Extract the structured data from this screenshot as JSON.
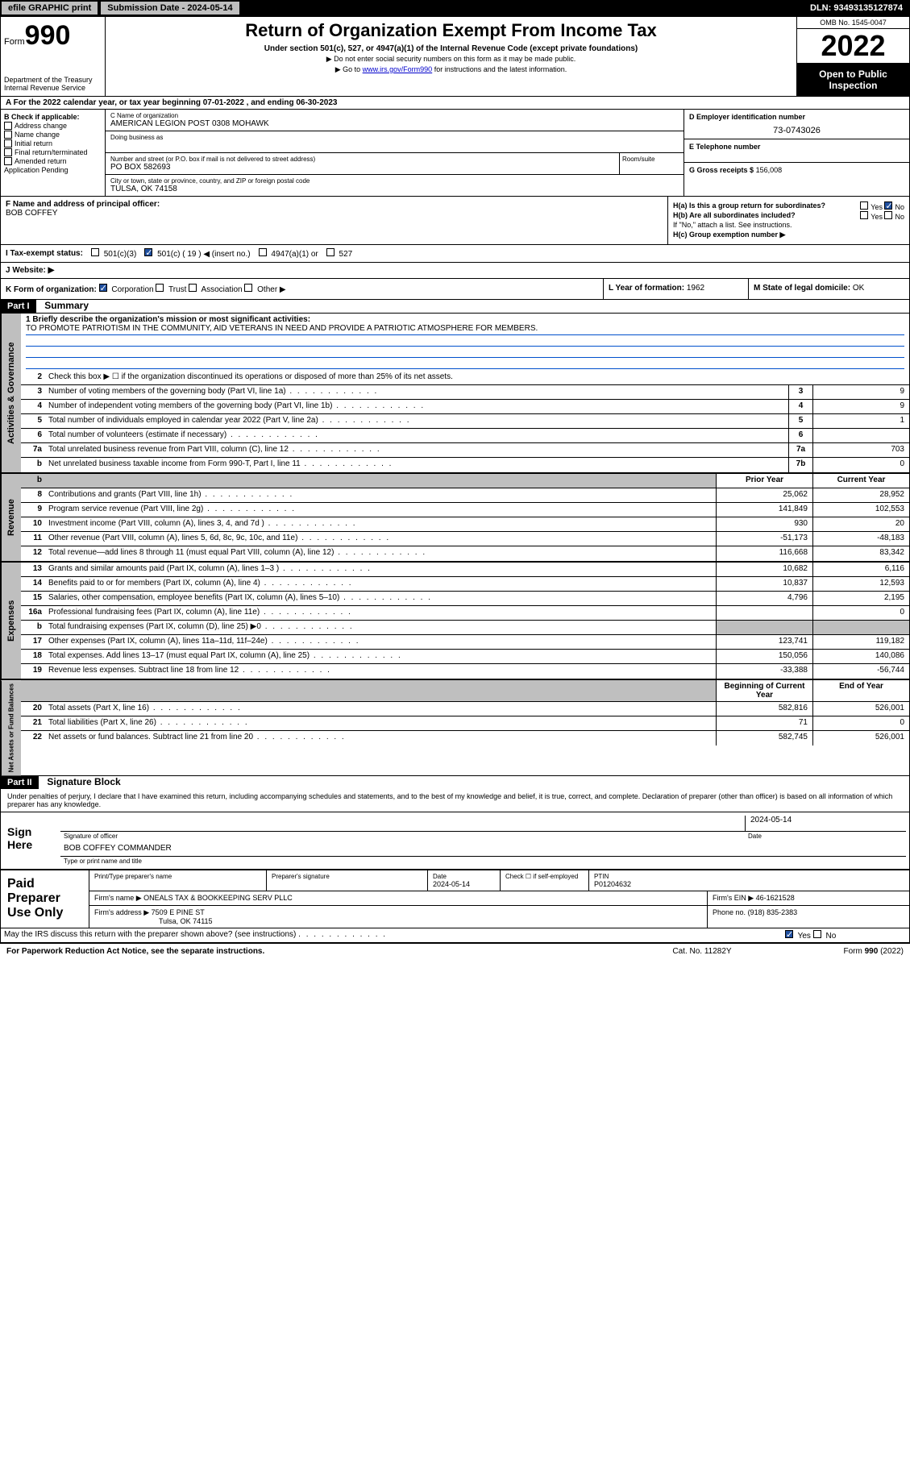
{
  "topbar": {
    "efile": "efile GRAPHIC print",
    "submission": "Submission Date - 2024-05-14",
    "dln": "DLN: 93493135127874"
  },
  "header": {
    "form_label": "Form",
    "form_num": "990",
    "title": "Return of Organization Exempt From Income Tax",
    "subtitle": "Under section 501(c), 527, or 4947(a)(1) of the Internal Revenue Code (except private foundations)",
    "note1": "▶ Do not enter social security numbers on this form as it may be made public.",
    "note2_pre": "▶ Go to ",
    "note2_link": "www.irs.gov/Form990",
    "note2_post": " for instructions and the latest information.",
    "dept": "Department of the Treasury",
    "irs": "Internal Revenue Service",
    "omb": "OMB No. 1545-0047",
    "year": "2022",
    "open": "Open to Public Inspection"
  },
  "period": {
    "label_a": "A For the 2022 calendar year, or tax year beginning ",
    "begin": "07-01-2022",
    "mid": " , and ending ",
    "end": "06-30-2023"
  },
  "box_b": {
    "title": "B Check if applicable:",
    "items": [
      "Address change",
      "Name change",
      "Initial return",
      "Final return/terminated",
      "Amended return",
      "Application Pending"
    ]
  },
  "box_c": {
    "name_label": "C Name of organization",
    "name": "AMERICAN LEGION POST 0308 MOHAWK",
    "dba_label": "Doing business as",
    "addr_label": "Number and street (or P.O. box if mail is not delivered to street address)",
    "addr": "PO BOX 582693",
    "suite_label": "Room/suite",
    "city_label": "City or town, state or province, country, and ZIP or foreign postal code",
    "city": "TULSA, OK  74158"
  },
  "box_d": {
    "label": "D Employer identification number",
    "val": "73-0743026"
  },
  "box_e": {
    "label": "E Telephone number",
    "val": ""
  },
  "box_g": {
    "label": "G Gross receipts $",
    "val": "156,008"
  },
  "box_f": {
    "label": "F Name and address of principal officer:",
    "name": "BOB COFFEY"
  },
  "box_h": {
    "ha": "H(a)  Is this a group return for subordinates?",
    "hb": "H(b)  Are all subordinates included?",
    "hb_note": "If \"No,\" attach a list. See instructions.",
    "hc": "H(c)  Group exemption number ▶",
    "yes": "Yes",
    "no": "No"
  },
  "box_i": {
    "label": "I     Tax-exempt status:",
    "c3": "501(c)(3)",
    "c": "501(c) ( 19 ) ◀ (insert no.)",
    "a1": "4947(a)(1) or",
    "s527": "527"
  },
  "box_j": {
    "label": "J     Website: ▶"
  },
  "box_k": {
    "label": "K Form of organization:",
    "corp": "Corporation",
    "trust": "Trust",
    "assoc": "Association",
    "other": "Other ▶"
  },
  "box_l": {
    "label": "L Year of formation:",
    "val": "1962"
  },
  "box_m": {
    "label": "M State of legal domicile:",
    "val": "OK"
  },
  "part1": {
    "header": "Part I",
    "title": "Summary",
    "q1_label": "1  Briefly describe the organization's mission or most significant activities:",
    "q1_val": "TO PROMOTE PATRIOTISM IN THE COMMUNITY, AID VETERANS IN NEED AND PROVIDE A PATRIOTIC ATMOSPHERE FOR MEMBERS.",
    "q2": "Check this box ▶ ☐  if the organization discontinued its operations or disposed of more than 25% of its net assets.",
    "prior_head": "Prior Year",
    "current_head": "Current Year",
    "begin_head": "Beginning of Current Year",
    "end_head": "End of Year",
    "rows_ag": [
      {
        "n": "3",
        "t": "Number of voting members of the governing body (Part VI, line 1a)",
        "box": "3",
        "v": "9"
      },
      {
        "n": "4",
        "t": "Number of independent voting members of the governing body (Part VI, line 1b)",
        "box": "4",
        "v": "9"
      },
      {
        "n": "5",
        "t": "Total number of individuals employed in calendar year 2022 (Part V, line 2a)",
        "box": "5",
        "v": "1"
      },
      {
        "n": "6",
        "t": "Total number of volunteers (estimate if necessary)",
        "box": "6",
        "v": ""
      },
      {
        "n": "7a",
        "t": "Total unrelated business revenue from Part VIII, column (C), line 12",
        "box": "7a",
        "v": "703"
      },
      {
        "n": "b",
        "t": "Net unrelated business taxable income from Form 990-T, Part I, line 11",
        "box": "7b",
        "v": "0"
      }
    ],
    "rows_rev": [
      {
        "n": "8",
        "t": "Contributions and grants (Part VIII, line 1h)",
        "p": "25,062",
        "c": "28,952"
      },
      {
        "n": "9",
        "t": "Program service revenue (Part VIII, line 2g)",
        "p": "141,849",
        "c": "102,553"
      },
      {
        "n": "10",
        "t": "Investment income (Part VIII, column (A), lines 3, 4, and 7d )",
        "p": "930",
        "c": "20"
      },
      {
        "n": "11",
        "t": "Other revenue (Part VIII, column (A), lines 5, 6d, 8c, 9c, 10c, and 11e)",
        "p": "-51,173",
        "c": "-48,183"
      },
      {
        "n": "12",
        "t": "Total revenue—add lines 8 through 11 (must equal Part VIII, column (A), line 12)",
        "p": "116,668",
        "c": "83,342"
      }
    ],
    "rows_exp": [
      {
        "n": "13",
        "t": "Grants and similar amounts paid (Part IX, column (A), lines 1–3 )",
        "p": "10,682",
        "c": "6,116"
      },
      {
        "n": "14",
        "t": "Benefits paid to or for members (Part IX, column (A), line 4)",
        "p": "10,837",
        "c": "12,593"
      },
      {
        "n": "15",
        "t": "Salaries, other compensation, employee benefits (Part IX, column (A), lines 5–10)",
        "p": "4,796",
        "c": "2,195"
      },
      {
        "n": "16a",
        "t": "Professional fundraising fees (Part IX, column (A), line 11e)",
        "p": "",
        "c": "0"
      },
      {
        "n": "b",
        "t": "Total fundraising expenses (Part IX, column (D), line 25) ▶0",
        "p": "GREY",
        "c": "GREY"
      },
      {
        "n": "17",
        "t": "Other expenses (Part IX, column (A), lines 11a–11d, 11f–24e)",
        "p": "123,741",
        "c": "119,182"
      },
      {
        "n": "18",
        "t": "Total expenses. Add lines 13–17 (must equal Part IX, column (A), line 25)",
        "p": "150,056",
        "c": "140,086"
      },
      {
        "n": "19",
        "t": "Revenue less expenses. Subtract line 18 from line 12",
        "p": "-33,388",
        "c": "-56,744"
      }
    ],
    "rows_net": [
      {
        "n": "20",
        "t": "Total assets (Part X, line 16)",
        "p": "582,816",
        "c": "526,001"
      },
      {
        "n": "21",
        "t": "Total liabilities (Part X, line 26)",
        "p": "71",
        "c": "0"
      },
      {
        "n": "22",
        "t": "Net assets or fund balances. Subtract line 21 from line 20",
        "p": "582,745",
        "c": "526,001"
      }
    ]
  },
  "part2": {
    "header": "Part II",
    "title": "Signature Block",
    "decl": "Under penalties of perjury, I declare that I have examined this return, including accompanying schedules and statements, and to the best of my knowledge and belief, it is true, correct, and complete. Declaration of preparer (other than officer) is based on all information of which preparer has any knowledge.",
    "sign_here": "Sign Here",
    "sig_officer": "Signature of officer",
    "date": "Date",
    "date_val": "2024-05-14",
    "officer_name": "BOB COFFEY COMMANDER",
    "type_name": "Type or print name and title",
    "paid": "Paid Preparer Use Only",
    "prep_name_label": "Print/Type preparer's name",
    "prep_sig_label": "Preparer's signature",
    "prep_date_label": "Date",
    "prep_date": "2024-05-14",
    "check_if": "Check ☐ if self-employed",
    "ptin_label": "PTIN",
    "ptin": "P01204632",
    "firm_name_label": "Firm's name    ▶",
    "firm_name": "ONEALS TAX & BOOKKEEPING SERV PLLC",
    "firm_ein_label": "Firm's EIN ▶",
    "firm_ein": "46-1621528",
    "firm_addr_label": "Firm's address ▶",
    "firm_addr1": "7509 E PINE ST",
    "firm_addr2": "Tulsa, OK  74115",
    "phone_label": "Phone no.",
    "phone": "(918) 835-2383",
    "discuss": "May the IRS discuss this return with the preparer shown above? (see instructions)",
    "yes": "Yes",
    "no": "No"
  },
  "footer": {
    "left": "For Paperwork Reduction Act Notice, see the separate instructions.",
    "mid": "Cat. No. 11282Y",
    "right": "Form 990 (2022)"
  },
  "vtabs": {
    "ag": "Activities & Governance",
    "rev": "Revenue",
    "exp": "Expenses",
    "net": "Net Assets or Fund Balances"
  }
}
